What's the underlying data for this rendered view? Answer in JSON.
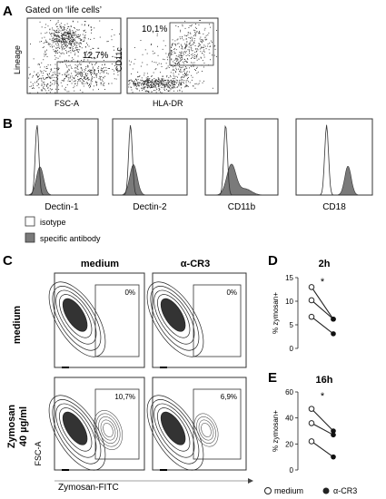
{
  "panels": {
    "A": "A",
    "B": "B",
    "C": "C",
    "D": "D",
    "E": "E"
  },
  "panel_a": {
    "gate_title": "Gated on ‘life cells’",
    "plot1": {
      "ylabel": "Lineage",
      "xlabel": "FSC-A",
      "gate_pct": "12,7%"
    },
    "plot2": {
      "ylabel": "CD11c",
      "xlabel": "HLA-DR",
      "gate_pct": "10,1%"
    }
  },
  "panel_b": {
    "histograms": [
      {
        "label": "Dectin-1"
      },
      {
        "label": "Dectin-2"
      },
      {
        "label": "CD11b"
      },
      {
        "label": "CD18"
      }
    ],
    "legend": [
      {
        "label": "isotype",
        "fill": "#ffffff"
      },
      {
        "label": "specific antibody",
        "fill": "#7a7a7a"
      }
    ]
  },
  "panel_c": {
    "col_headers": [
      "medium",
      "α-CR3"
    ],
    "row_headers": [
      "medium",
      "Zymosan\n40 µg/ml"
    ],
    "row_header_lines": [
      [
        "medium"
      ],
      [
        "Zymosan",
        "40 µg/ml"
      ]
    ],
    "ylabel": "FSC-A",
    "xlabel": "Zymosan-FITC",
    "gate_values": [
      [
        "0%",
        "0%"
      ],
      [
        "10,7%",
        "6,9%"
      ]
    ]
  },
  "chart_data": [
    {
      "type": "line",
      "title": "2h",
      "ylabel": "% zymosan+",
      "ylim": [
        0,
        15
      ],
      "yticks": [
        0,
        5,
        10,
        15
      ],
      "x": [
        "medium",
        "α-CR3"
      ],
      "pairs": [
        [
          13,
          6.2
        ],
        [
          10.2,
          6.2
        ],
        [
          6.7,
          3.1
        ]
      ],
      "significance": "*"
    },
    {
      "type": "line",
      "title": "16h",
      "ylabel": "% zymosan+",
      "ylim": [
        0,
        60
      ],
      "yticks": [
        0,
        20,
        40,
        60
      ],
      "x": [
        "medium",
        "α-CR3"
      ],
      "pairs": [
        [
          47,
          30
        ],
        [
          36,
          27
        ],
        [
          22,
          10
        ]
      ],
      "significance": "*"
    }
  ],
  "legend_de": [
    {
      "label": "medium",
      "marker": "open-circle"
    },
    {
      "label": "α-CR3",
      "marker": "filled-circle"
    }
  ]
}
